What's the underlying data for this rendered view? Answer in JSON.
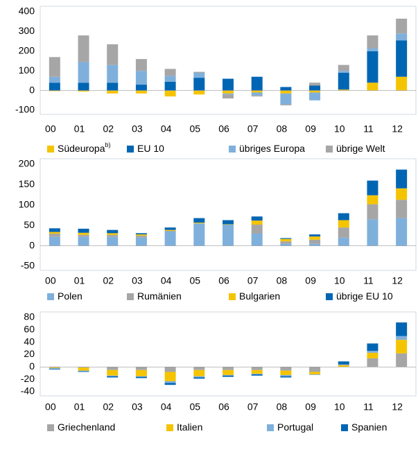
{
  "chart_data": [
    {
      "type": "bar",
      "stacked": true,
      "categories": [
        "00",
        "01",
        "02",
        "03",
        "04",
        "05",
        "06",
        "07",
        "08",
        "09",
        "10",
        "11",
        "12"
      ],
      "ylim": [
        -100,
        400
      ],
      "yticks": [
        -100,
        0,
        100,
        200,
        300,
        400
      ],
      "series": [
        {
          "name": "Südeuropa",
          "name_note": "b)",
          "color": "#f5c400",
          "values": [
            -3,
            -5,
            -15,
            -15,
            -30,
            -20,
            -15,
            -10,
            -15,
            -10,
            5,
            40,
            70
          ]
        },
        {
          "name": "EU 10",
          "color": "#0066b3",
          "values": [
            40,
            40,
            40,
            30,
            45,
            65,
            60,
            70,
            18,
            25,
            85,
            160,
            185
          ]
        },
        {
          "name": "übriges Europa",
          "color": "#7fb0dc",
          "values": [
            30,
            105,
            90,
            70,
            30,
            25,
            -5,
            -15,
            -55,
            -40,
            10,
            15,
            35
          ]
        },
        {
          "name": "übrige Welt",
          "color": "#a6a6a6",
          "values": [
            100,
            135,
            105,
            60,
            35,
            5,
            -20,
            -5,
            -5,
            15,
            30,
            65,
            75
          ]
        }
      ]
    },
    {
      "type": "bar",
      "stacked": true,
      "categories": [
        "00",
        "01",
        "02",
        "03",
        "04",
        "05",
        "06",
        "07",
        "08",
        "09",
        "10",
        "11",
        "12"
      ],
      "ylim": [
        -50,
        200
      ],
      "yticks": [
        -50,
        0,
        50,
        100,
        150,
        200
      ],
      "series": [
        {
          "name": "Polen",
          "color": "#7fb0dc",
          "values": [
            22,
            22,
            22,
            20,
            35,
            55,
            52,
            30,
            5,
            5,
            20,
            65,
            68
          ]
        },
        {
          "name": "Rumänien",
          "color": "#a6a6a6",
          "values": [
            8,
            5,
            5,
            5,
            2,
            0,
            0,
            22,
            6,
            10,
            25,
            37,
            45
          ]
        },
        {
          "name": "Bulgarien",
          "color": "#f5c400",
          "values": [
            4,
            5,
            4,
            3,
            2,
            2,
            1,
            10,
            6,
            8,
            18,
            22,
            28
          ]
        },
        {
          "name": "übrige EU 10",
          "color": "#0066b3",
          "values": [
            9,
            10,
            8,
            3,
            6,
            11,
            10,
            10,
            2,
            5,
            17,
            36,
            46
          ]
        }
      ]
    },
    {
      "type": "bar",
      "stacked": true,
      "categories": [
        "00",
        "01",
        "02",
        "03",
        "04",
        "05",
        "06",
        "07",
        "08",
        "09",
        "10",
        "11",
        "12"
      ],
      "ylim": [
        -40,
        80
      ],
      "yticks": [
        -40,
        -20,
        0,
        20,
        40,
        60,
        80
      ],
      "series": [
        {
          "name": "Griechenland",
          "color": "#a6a6a6",
          "values": [
            -1,
            -1,
            -5,
            -5,
            -8,
            -5,
            -5,
            -5,
            -6,
            -8,
            0,
            14,
            22
          ]
        },
        {
          "name": "Italien",
          "color": "#f5c400",
          "values": [
            -1,
            -5,
            -9,
            -10,
            -15,
            -10,
            -8,
            -6,
            -7,
            -4,
            3,
            9,
            22
          ]
        },
        {
          "name": "Portugal",
          "color": "#7fb0dc",
          "values": [
            -1,
            -1,
            -1,
            -1,
            -3,
            -2,
            -1,
            -1,
            -2,
            -1,
            1,
            3,
            6
          ]
        },
        {
          "name": "Spanien",
          "color": "#0066b3",
          "values": [
            -1,
            -1,
            -2,
            -2,
            -3,
            -2,
            -2,
            -2,
            -2,
            0,
            5,
            12,
            22
          ]
        }
      ]
    }
  ]
}
